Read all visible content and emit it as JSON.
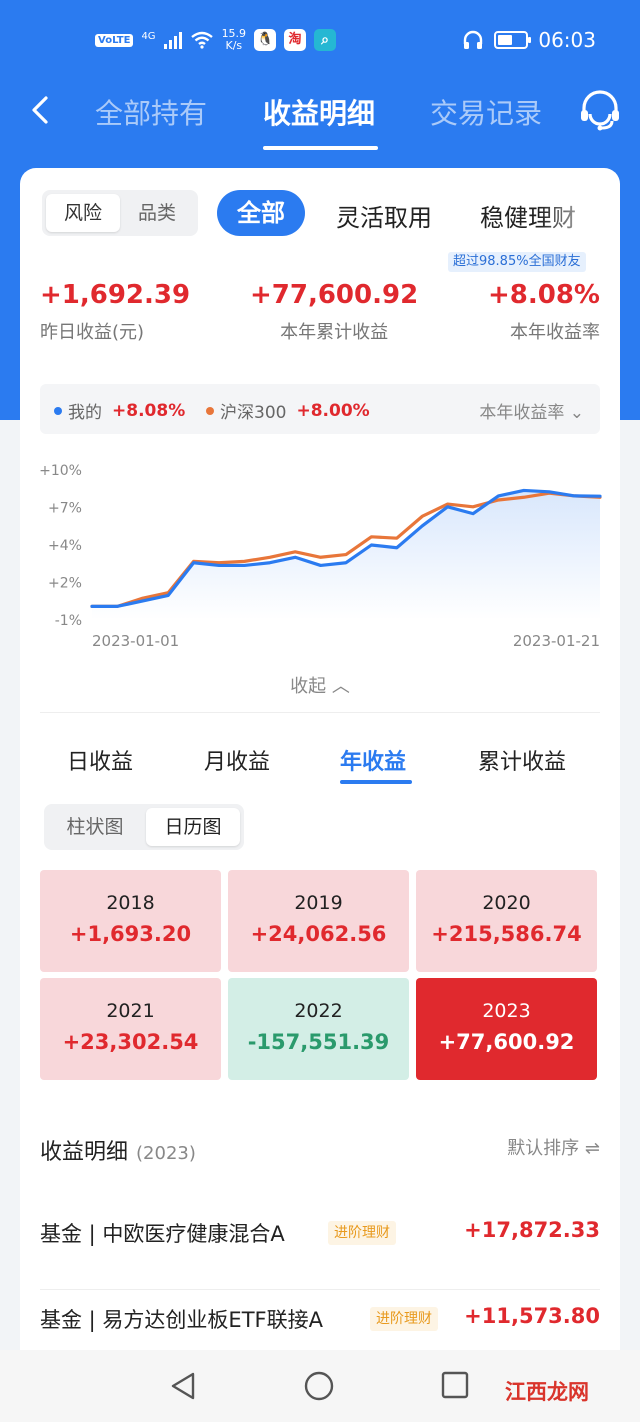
{
  "status": {
    "net_chip": "VoLTE",
    "net_type": "4G",
    "speed_value": "15.9",
    "speed_unit": "K/s",
    "app1_icon": "penguin-icon",
    "app2_label": "淘",
    "time": "06:03"
  },
  "nav": {
    "tabs": [
      "全部持有",
      "收益明细",
      "交易记录"
    ],
    "active_tab": "收益明细",
    "service_icon": "customer-service-icon"
  },
  "filters": {
    "segment": [
      "风险",
      "品类"
    ],
    "categories": [
      "全部",
      "灵活取用",
      "稳健理财"
    ],
    "active_category": "全部"
  },
  "badge": "超过98.85%全国财友",
  "summary": [
    {
      "value": "+1,692.39",
      "label": "昨日收益(元)"
    },
    {
      "value": "+77,600.92",
      "label": "本年累计收益"
    },
    {
      "value": "+8.08%",
      "label": "本年收益率"
    }
  ],
  "legend": {
    "mine_label": "我的",
    "mine_value": "+8.08%",
    "bench_label": "沪深300",
    "bench_value": "+8.00%",
    "selector": "本年收益率"
  },
  "colors": {
    "accent": "#2b7bf0",
    "up": "#e0292e",
    "down": "#2a9a6c",
    "mine_line": "#2b7bf0",
    "bench_line": "#e8763a",
    "up_cell": "#f8d7da",
    "down_cell": "#d3eee6",
    "highlight_cell": "#e0292e"
  },
  "chart_data": {
    "type": "line",
    "x": [
      "2023-01-01",
      "2023-01-02",
      "2023-01-03",
      "2023-01-04",
      "2023-01-05",
      "2023-01-06",
      "2023-01-07",
      "2023-01-08",
      "2023-01-09",
      "2023-01-10",
      "2023-01-11",
      "2023-01-12",
      "2023-01-13",
      "2023-01-14",
      "2023-01-15",
      "2023-01-16",
      "2023-01-17",
      "2023-01-18",
      "2023-01-19",
      "2023-01-20",
      "2023-01-21"
    ],
    "x_tick_labels": [
      "2023-01-01",
      "2023-01-21"
    ],
    "y_tick_labels": [
      "+10%",
      "+7%",
      "+4%",
      "+2%",
      "-1%"
    ],
    "ylim": [
      -1,
      10
    ],
    "series": [
      {
        "name": "我的",
        "values": [
          0.0,
          0.0,
          0.4,
          0.8,
          3.2,
          3.0,
          3.0,
          3.2,
          3.6,
          3.0,
          3.2,
          4.5,
          4.3,
          5.9,
          7.3,
          6.8,
          8.1,
          8.5,
          8.4,
          8.1,
          8.08
        ]
      },
      {
        "name": "沪深300",
        "values": [
          0.0,
          0.0,
          0.6,
          1.0,
          3.3,
          3.2,
          3.3,
          3.6,
          4.0,
          3.6,
          3.8,
          5.1,
          5.0,
          6.6,
          7.5,
          7.3,
          7.8,
          8.0,
          8.3,
          8.1,
          8.0
        ]
      }
    ],
    "grid": false,
    "legend_position": "top"
  },
  "collapse_label": "收起",
  "period_tabs": [
    "日收益",
    "月收益",
    "年收益",
    "累计收益"
  ],
  "active_period": "年收益",
  "view_toggle": [
    "柱状图",
    "日历图"
  ],
  "years": [
    {
      "year": "2018",
      "amount": "+1,693.20",
      "state": "up"
    },
    {
      "year": "2019",
      "amount": "+24,062.56",
      "state": "up"
    },
    {
      "year": "2020",
      "amount": "+215,586.74",
      "state": "up"
    },
    {
      "year": "2021",
      "amount": "+23,302.54",
      "state": "up"
    },
    {
      "year": "2022",
      "amount": "-157,551.39",
      "state": "down"
    },
    {
      "year": "2023",
      "amount": "+77,600.92",
      "state": "selected"
    }
  ],
  "detail": {
    "title": "收益明细",
    "year": "(2023)",
    "sort": "默认排序 ⇌"
  },
  "holdings": [
    {
      "name": "基金 | 中欧医疗健康混合A",
      "tag": "进阶理财",
      "amount": "+17,872.33"
    },
    {
      "name": "基金 | 易方达创业板ETF联接A",
      "tag": "进阶理财",
      "amount": "+11,573.80"
    }
  ],
  "watermark": "江西龙网"
}
